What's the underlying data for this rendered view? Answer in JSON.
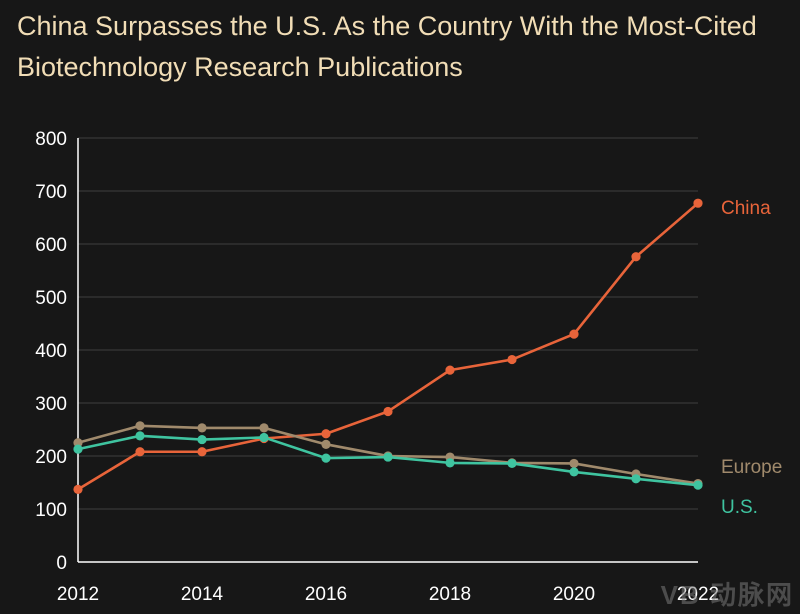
{
  "chart_data": {
    "type": "line",
    "title": "China Surpasses the U.S. As the Country With the Most-Cited Biotechnology Research Publications",
    "xlabel": "",
    "ylabel": "",
    "x": [
      2012,
      2013,
      2014,
      2015,
      2016,
      2017,
      2018,
      2019,
      2020,
      2021,
      2022
    ],
    "x_ticks": [
      "2012",
      "2014",
      "2016",
      "2018",
      "2020",
      "2022"
    ],
    "y_ticks": [
      "0",
      "100",
      "200",
      "300",
      "400",
      "500",
      "600",
      "700",
      "800"
    ],
    "ylim": [
      0,
      800
    ],
    "xlim": [
      2012,
      2022
    ],
    "grid": "horizontal",
    "legend": "direct labels at right end of lines",
    "series": [
      {
        "name": "China",
        "color": "#e8643a",
        "values": [
          137,
          208,
          208,
          233,
          242,
          284,
          362,
          382,
          430,
          576,
          677
        ]
      },
      {
        "name": "Europe",
        "color": "#a08a6c",
        "values": [
          225,
          257,
          253,
          253,
          222,
          200,
          198,
          187,
          186,
          166,
          148
        ]
      },
      {
        "name": "U.S.",
        "color": "#3fc4a0",
        "values": [
          213,
          238,
          231,
          235,
          196,
          198,
          187,
          186,
          170,
          157,
          145
        ]
      }
    ]
  },
  "watermark": "动脉网"
}
